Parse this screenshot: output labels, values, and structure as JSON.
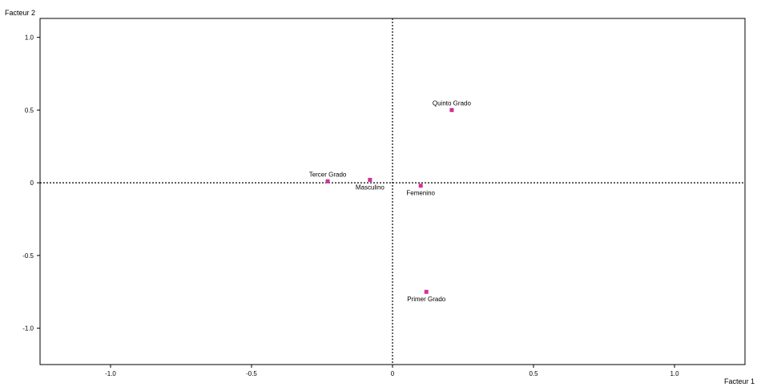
{
  "chart_data": {
    "type": "scatter",
    "title": "",
    "xlabel": "Facteur 1",
    "ylabel": "Facteur 2",
    "xlim": [
      -1.25,
      1.25
    ],
    "ylim": [
      -1.25,
      1.13
    ],
    "xticks": [
      -1.0,
      -0.5,
      0,
      0.5,
      1.0
    ],
    "xtick_labels": [
      "-1.0",
      "-0.5",
      "0",
      "0.5",
      "1.0"
    ],
    "yticks": [
      1.0,
      0.5,
      0,
      -0.5,
      -1.0
    ],
    "ytick_labels": [
      "1.0",
      "0.5",
      "0",
      "-0.5",
      "-1.0"
    ],
    "grid": false,
    "reference_lines": [
      "x=0",
      "y=0"
    ],
    "point_color": "#cc3399",
    "points": [
      {
        "label": "Quinto Grado",
        "x": 0.21,
        "y": 0.5,
        "label_position": "above"
      },
      {
        "label": "Tercer Grado",
        "x": -0.23,
        "y": 0.01,
        "label_position": "above"
      },
      {
        "label": "Masculino",
        "x": -0.08,
        "y": 0.02,
        "label_position": "below"
      },
      {
        "label": "Femenino",
        "x": 0.1,
        "y": -0.02,
        "label_position": "below"
      },
      {
        "label": "Primer Grado",
        "x": 0.12,
        "y": -0.75,
        "label_position": "below"
      }
    ]
  }
}
